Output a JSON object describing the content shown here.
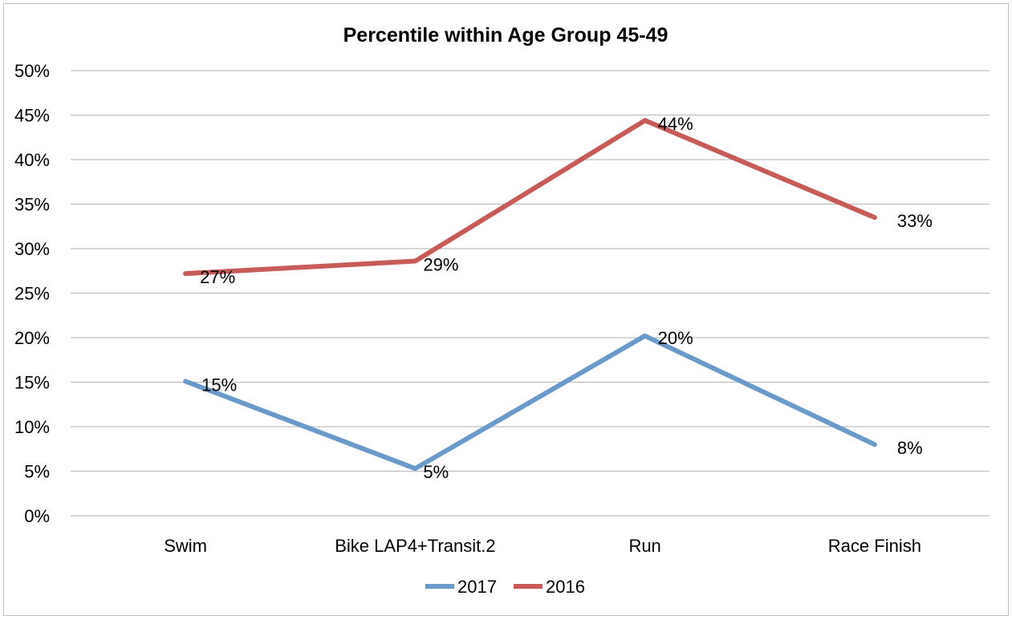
{
  "chart_data": {
    "type": "line",
    "title": "Percentile within Age Group 45-49",
    "categories": [
      "Swim",
      "Bike LAP4+Transit.2",
      "Run",
      "Race Finish"
    ],
    "y_ticks": [
      "0%",
      "5%",
      "10%",
      "15%",
      "20%",
      "25%",
      "30%",
      "35%",
      "40%",
      "45%",
      "50%"
    ],
    "ylim": [
      0,
      50
    ],
    "grid": true,
    "legend_position": "bottom",
    "series": [
      {
        "name": "2017",
        "color": "#6a9ac9",
        "values": [
          15.1,
          5.3,
          20.2,
          8.0
        ],
        "labels": [
          "15%",
          "5%",
          "20%",
          "8%"
        ]
      },
      {
        "name": "2016",
        "color": "#c75b57",
        "values": [
          27.2,
          28.6,
          44.4,
          33.5
        ],
        "labels": [
          "27%",
          "29%",
          "44%",
          "33%"
        ]
      }
    ]
  }
}
